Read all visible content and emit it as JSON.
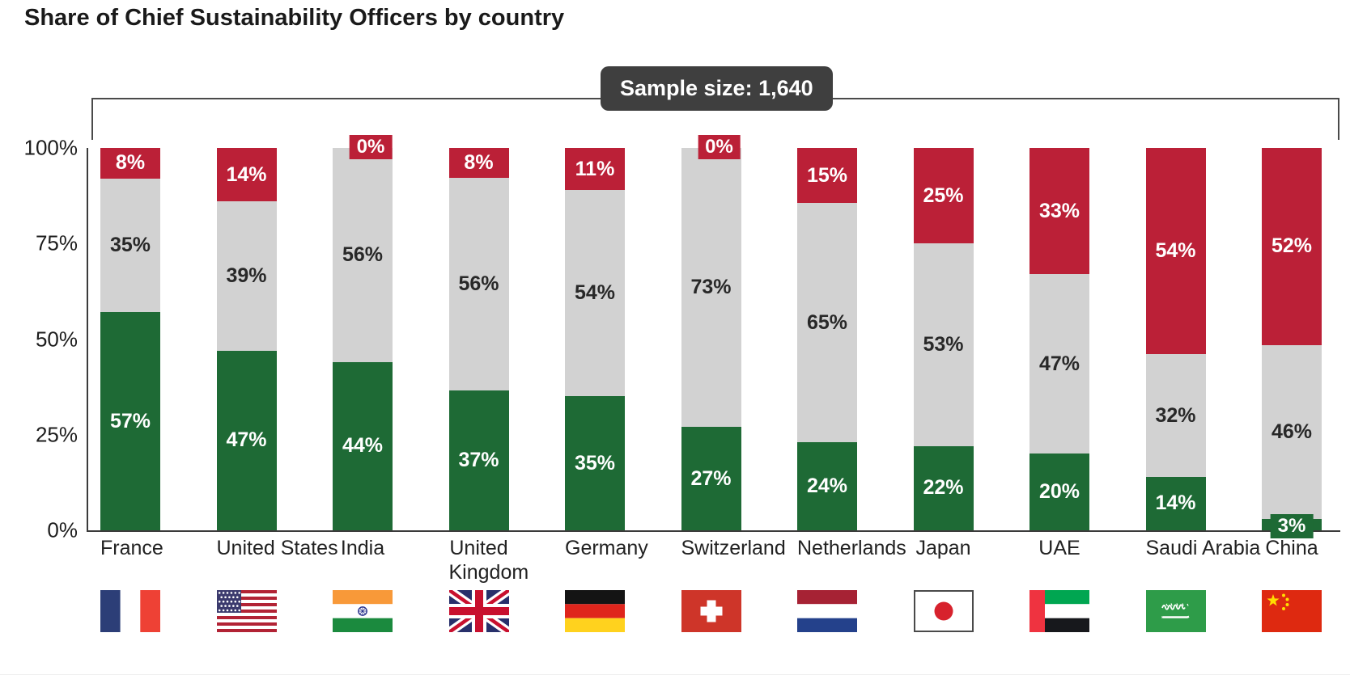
{
  "chart_data": {
    "type": "bar",
    "stacked": true,
    "title": "Share of Chief Sustainability Officers by country",
    "annotation": "Sample size: 1,640",
    "categories": [
      "France",
      "United States",
      "India",
      "United Kingdom",
      "Germany",
      "Switzerland",
      "Netherlands",
      "Japan",
      "UAE",
      "Saudi Arabia",
      "China"
    ],
    "category_label_lines": [
      [
        "France"
      ],
      [
        "United States"
      ],
      [
        "India"
      ],
      [
        "United",
        "Kingdom"
      ],
      [
        "Germany"
      ],
      [
        "Switzerland"
      ],
      [
        "Netherlands"
      ],
      [
        "Japan"
      ],
      [
        "UAE"
      ],
      [
        "Saudi Arabia"
      ],
      [
        "China"
      ]
    ],
    "series": [
      {
        "name": "green",
        "color": "#1E6A35",
        "label_color": "#FFFFFF",
        "values": [
          57,
          47,
          44,
          37,
          35,
          27,
          24,
          22,
          20,
          14,
          3
        ]
      },
      {
        "name": "gray",
        "color": "#D2D2D2",
        "label_color": "#282828",
        "values": [
          35,
          39,
          56,
          56,
          54,
          73,
          65,
          53,
          47,
          32,
          46
        ]
      },
      {
        "name": "red",
        "color": "#BB2037",
        "label_color": "#FFFFFF",
        "values": [
          8,
          14,
          0,
          8,
          11,
          0,
          15,
          25,
          33,
          54,
          52
        ]
      }
    ],
    "y_ticks": [
      {
        "label": "100%",
        "value": 100
      },
      {
        "label": "75%",
        "value": 75
      },
      {
        "label": "50%",
        "value": 50
      },
      {
        "label": "25%",
        "value": 25
      },
      {
        "label": "0%",
        "value": 0
      }
    ],
    "ylim": [
      0,
      100
    ],
    "grid": false,
    "legend": "none",
    "flag_icons": [
      "flag-france-icon",
      "flag-united-states-icon",
      "flag-india-icon",
      "flag-united-kingdom-icon",
      "flag-germany-icon",
      "flag-switzerland-icon",
      "flag-netherlands-icon",
      "flag-japan-icon",
      "flag-uae-icon",
      "flag-saudi-arabia-icon",
      "flag-china-icon"
    ]
  },
  "colors": {
    "badge_background": "#3F3F3F",
    "badge_text": "#FFFFFF",
    "axis": "#3B3B3B",
    "bracket": "#4A4A4A"
  }
}
